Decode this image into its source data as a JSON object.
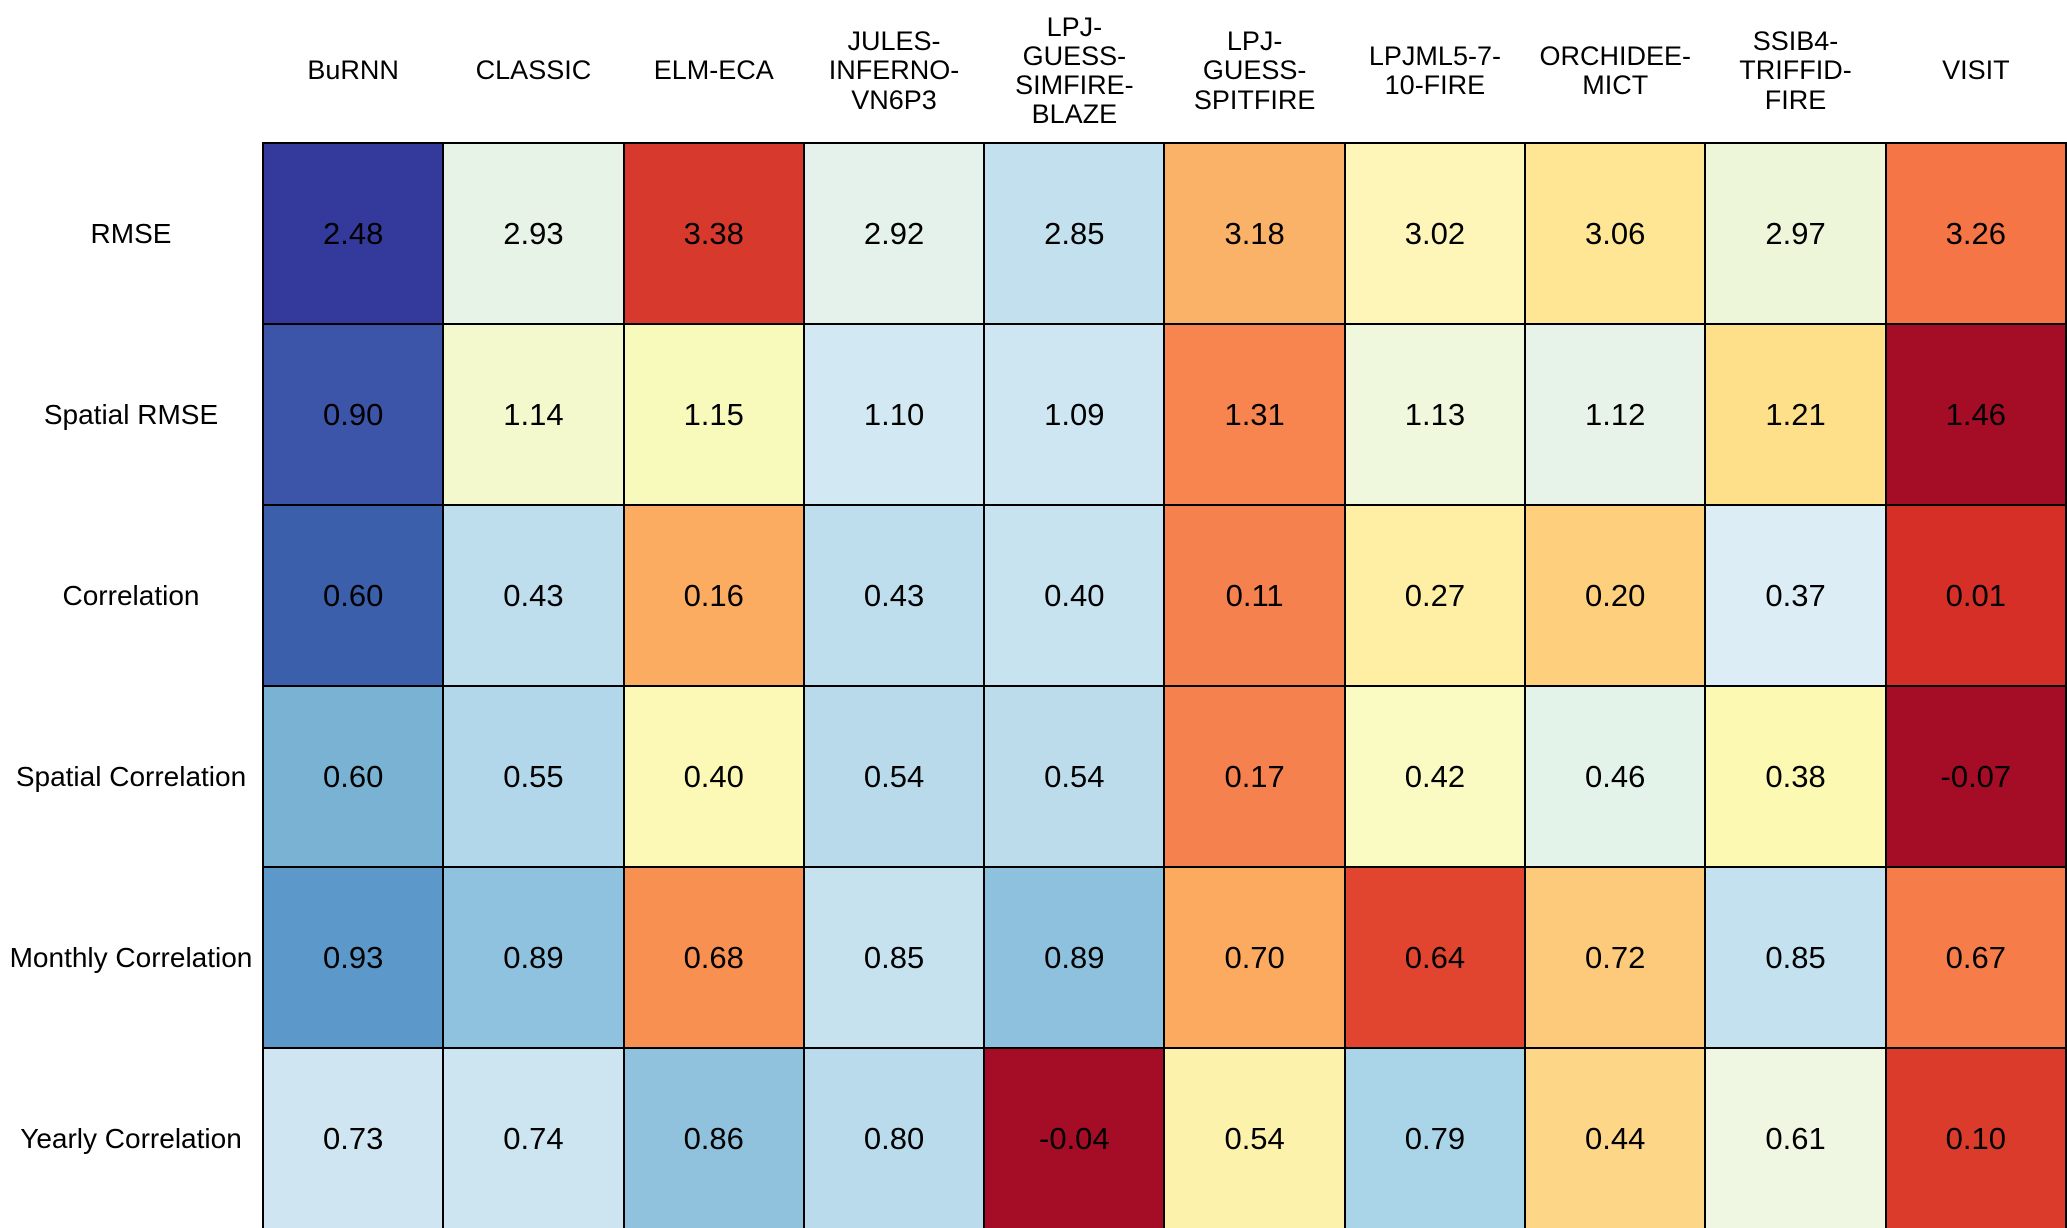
{
  "figure": {
    "background_color": "#ffffff",
    "grid_line_color": "#000000",
    "cell_text_color": "#000000"
  },
  "chart_data": {
    "type": "heatmap",
    "title": "",
    "xlabel": "",
    "ylabel": "",
    "legend": "none",
    "columns": [
      "BuRNN",
      "CLASSIC",
      "ELM-ECA",
      "JULES-INFERNO-VN6P3",
      "LPJ-GUESS-SIMFIRE-BLAZE",
      "LPJ-GUESS-SPITFIRE",
      "LPJML5-7-10-FIRE",
      "ORCHIDEE-MICT",
      "SSIB4-TRIFFID-FIRE",
      "VISIT"
    ],
    "column_labels_display": [
      "BuRNN",
      "CLASSIC",
      "ELM-ECA",
      "JULES-\nINFERNO-\nVN6P3",
      "LPJ-\nGUESS-\nSIMFIRE-\nBLAZE",
      "LPJ-\nGUESS-\nSPITFIRE",
      "LPJML5-7-\n10-FIRE",
      "ORCHIDEE-\nMICT",
      "SSIB4-\nTRIFFID-\nFIRE",
      "VISIT"
    ],
    "rows": [
      "RMSE",
      "Spatial RMSE",
      "Correlation",
      "Spatial Correlation",
      "Monthly Correlation",
      "Yearly Correlation"
    ],
    "values": [
      [
        2.48,
        2.93,
        3.38,
        2.92,
        2.85,
        3.18,
        3.02,
        3.06,
        2.97,
        3.26
      ],
      [
        0.9,
        1.14,
        1.15,
        1.1,
        1.09,
        1.31,
        1.13,
        1.12,
        1.21,
        1.46
      ],
      [
        0.6,
        0.43,
        0.16,
        0.43,
        0.4,
        0.11,
        0.27,
        0.2,
        0.37,
        0.01
      ],
      [
        0.6,
        0.55,
        0.4,
        0.54,
        0.54,
        0.17,
        0.42,
        0.46,
        0.38,
        -0.07
      ],
      [
        0.93,
        0.89,
        0.68,
        0.85,
        0.89,
        0.7,
        0.64,
        0.72,
        0.85,
        0.67
      ],
      [
        0.73,
        0.74,
        0.86,
        0.8,
        -0.04,
        0.54,
        0.79,
        0.44,
        0.61,
        0.1
      ]
    ],
    "values_display": [
      [
        "2.48",
        "2.93",
        "3.38",
        "2.92",
        "2.85",
        "3.18",
        "3.02",
        "3.06",
        "2.97",
        "3.26"
      ],
      [
        "0.90",
        "1.14",
        "1.15",
        "1.10",
        "1.09",
        "1.31",
        "1.13",
        "1.12",
        "1.21",
        "1.46"
      ],
      [
        "0.60",
        "0.43",
        "0.16",
        "0.43",
        "0.40",
        "0.11",
        "0.27",
        "0.20",
        "0.37",
        "0.01"
      ],
      [
        "0.60",
        "0.55",
        "0.40",
        "0.54",
        "0.54",
        "0.17",
        "0.42",
        "0.46",
        "0.38",
        "-0.07"
      ],
      [
        "0.93",
        "0.89",
        "0.68",
        "0.85",
        "0.89",
        "0.70",
        "0.64",
        "0.72",
        "0.85",
        "0.67"
      ],
      [
        "0.73",
        "0.74",
        "0.86",
        "0.80",
        "-0.04",
        "0.54",
        "0.79",
        "0.44",
        "0.61",
        "0.10"
      ]
    ],
    "cell_colors": [
      [
        "#333a9c",
        "#e8f3e8",
        "#d7392d",
        "#e5f2eb",
        "#c2e0ee",
        "#f9b267",
        "#fdf6b8",
        "#fee695",
        "#eef6da",
        "#f57547"
      ],
      [
        "#3c55a8",
        "#f3f8cd",
        "#f8fabb",
        "#d2e8f3",
        "#cde6f2",
        "#f8854f",
        "#eff7dc",
        "#e7f3e9",
        "#fee08b",
        "#a50d26"
      ],
      [
        "#3b5fab",
        "#bedded",
        "#fcac60",
        "#bedded",
        "#c8e3f0",
        "#f5824e",
        "#feefa4",
        "#fed07e",
        "#dcedf5",
        "#d62f27"
      ],
      [
        "#7ab2d4",
        "#b2d7ea",
        "#fbf9b5",
        "#b8daeb",
        "#bcdcec",
        "#f5824e",
        "#f9fbc3",
        "#e4f3e9",
        "#fcf9b3",
        "#a50d26"
      ],
      [
        "#5c98c9",
        "#8fc2de",
        "#f79051",
        "#c6e2ef",
        "#8ec1de",
        "#fcaa5f",
        "#e1452f",
        "#fdc97a",
        "#c4e1ef",
        "#f67d4a"
      ],
      [
        "#cfe6f2",
        "#cce5f1",
        "#90c2de",
        "#b9dbec",
        "#a50d26",
        "#fdf2ac",
        "#aad5e9",
        "#fdd687",
        "#eff7e2",
        "#da3b2b"
      ]
    ],
    "colormap_hint": "diverging blue-yellow-red (RdYlBu reversed), shaded per cell value within each metric row",
    "grid": "on"
  }
}
